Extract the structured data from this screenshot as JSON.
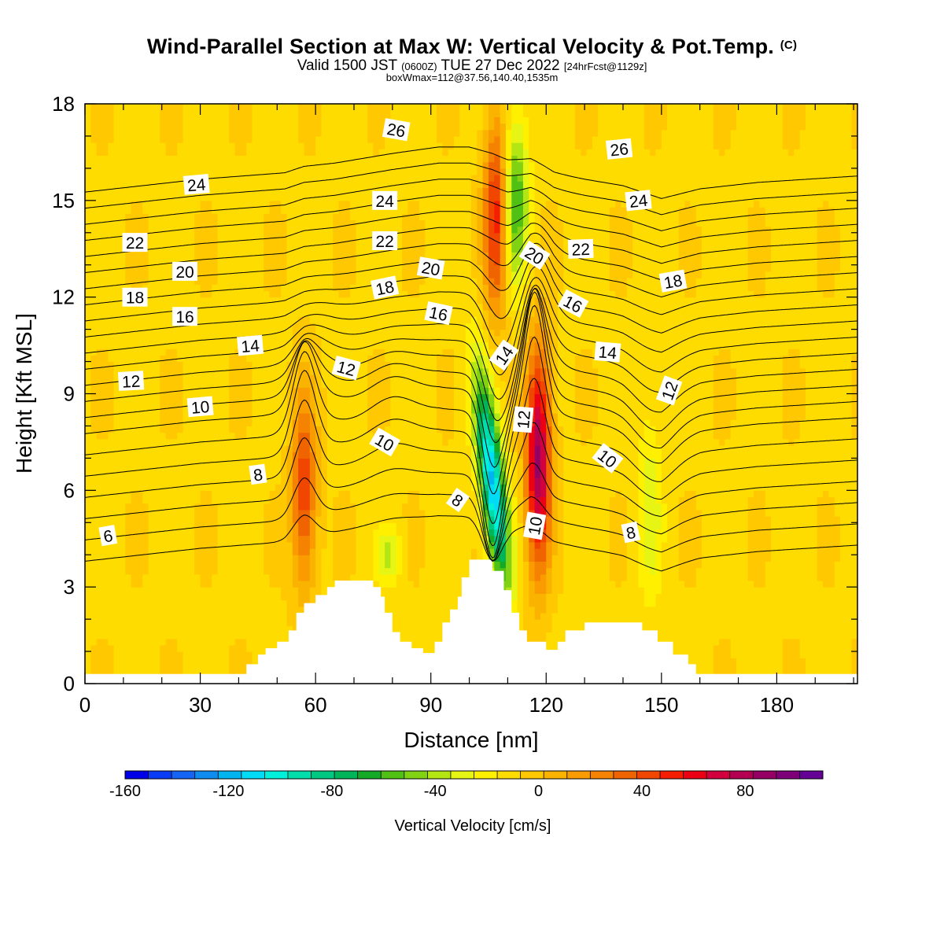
{
  "header": {
    "title": "Wind-Parallel Section at Max W: Vertical Velocity & Pot.Temp.",
    "copyright": "(C)",
    "subtitle_main_a": "Valid 1500 JST",
    "subtitle_small_a": "(0600Z)",
    "subtitle_main_b": "TUE 27 Dec 2022",
    "subtitle_small_b": "[24hrFcst@1129z]",
    "subsubtitle": "boxWmax=112@37.56,140.40,1535m"
  },
  "chart_data": {
    "type": "heatmap",
    "xlabel": "Distance [nm]",
    "ylabel": "Height [Kft MSL]",
    "xlim": [
      0,
      201
    ],
    "ylim": [
      0,
      18
    ],
    "x_ticks": [
      0,
      30,
      60,
      90,
      120,
      150,
      180
    ],
    "y_ticks": [
      0,
      3,
      6,
      9,
      12,
      15,
      18
    ],
    "x_tick_labels": [
      "0",
      "30",
      "60",
      "90",
      "120",
      "150",
      "180"
    ],
    "y_tick_labels": [
      "0",
      "3",
      "6",
      "9",
      "12",
      "15",
      "18"
    ],
    "colorbar": {
      "title": "Vertical Velocity [cm/s]",
      "min": -160,
      "max": 110,
      "step": 10,
      "tick_values": [
        -160,
        -120,
        -80,
        -40,
        0,
        40,
        80
      ],
      "tick_labels": [
        "-160",
        "-120",
        "-80",
        "-40",
        "0",
        "40",
        "80"
      ],
      "colors": [
        "#0000e8",
        "#0a3cf5",
        "#1464f5",
        "#0f8cf0",
        "#00b4f0",
        "#00dcf5",
        "#00f0dc",
        "#00dcaa",
        "#00c882",
        "#00b45a",
        "#14aa28",
        "#50c014",
        "#82d214",
        "#b4e614",
        "#e6f514",
        "#fff000",
        "#ffdc00",
        "#ffc800",
        "#fab400",
        "#fa9b00",
        "#f58200",
        "#f06400",
        "#f04600",
        "#f51e00",
        "#eb0014",
        "#d2003c",
        "#b40050",
        "#960064",
        "#7d0078",
        "#640096"
      ]
    },
    "w_field_features": [
      {
        "x_center": 57,
        "z_range": [
          2.5,
          9.5
        ],
        "w_max": 60,
        "sign": "updraft"
      },
      {
        "x_center": 107,
        "z_range": [
          11,
          18
        ],
        "w_max": 70,
        "sign": "updraft"
      },
      {
        "x_center": 112,
        "z_range": [
          12,
          18
        ],
        "w_min": -60,
        "sign": "downdraft"
      },
      {
        "x_center": 106,
        "z_range": [
          2.5,
          10
        ],
        "w_min": -120,
        "sign": "downdraft"
      },
      {
        "x_center": 118,
        "z_range": [
          3,
          11
        ],
        "w_max": 105,
        "sign": "updraft"
      },
      {
        "x_center": 147,
        "z_range": [
          2,
          9
        ],
        "w_min": -25,
        "sign": "downdraft"
      },
      {
        "x_center": 79,
        "z_range": [
          3,
          5
        ],
        "w_min": -30,
        "sign": "downdraft"
      }
    ],
    "terrain": [
      [
        0,
        0.3
      ],
      [
        42,
        0.3
      ],
      [
        42,
        0.6
      ],
      [
        45,
        0.6
      ],
      [
        45,
        0.9
      ],
      [
        47,
        0.9
      ],
      [
        47,
        1.1
      ],
      [
        50,
        1.1
      ],
      [
        50,
        1.3
      ],
      [
        53,
        1.3
      ],
      [
        53,
        1.65
      ],
      [
        55,
        1.65
      ],
      [
        55,
        2.2
      ],
      [
        57,
        2.2
      ],
      [
        57,
        2.5
      ],
      [
        60,
        2.5
      ],
      [
        60,
        2.75
      ],
      [
        63,
        2.75
      ],
      [
        63,
        3.0
      ],
      [
        65,
        3.0
      ],
      [
        65,
        3.2
      ],
      [
        75,
        3.2
      ],
      [
        75,
        3.0
      ],
      [
        77,
        3.0
      ],
      [
        77,
        2.7
      ],
      [
        78,
        2.7
      ],
      [
        78,
        2.2
      ],
      [
        80,
        2.2
      ],
      [
        80,
        1.6
      ],
      [
        82,
        1.6
      ],
      [
        82,
        1.3
      ],
      [
        85,
        1.3
      ],
      [
        85,
        1.1
      ],
      [
        88,
        1.1
      ],
      [
        88,
        0.95
      ],
      [
        91,
        0.95
      ],
      [
        91,
        1.3
      ],
      [
        93,
        1.3
      ],
      [
        93,
        1.9
      ],
      [
        95,
        1.9
      ],
      [
        95,
        2.3
      ],
      [
        97,
        2.3
      ],
      [
        97,
        2.7
      ],
      [
        98,
        2.7
      ],
      [
        98,
        3.3
      ],
      [
        100,
        3.3
      ],
      [
        100,
        3.85
      ],
      [
        106,
        3.85
      ],
      [
        106,
        3.5
      ],
      [
        109,
        3.5
      ],
      [
        109,
        2.9
      ],
      [
        111,
        2.9
      ],
      [
        111,
        2.2
      ],
      [
        113,
        2.2
      ],
      [
        113,
        1.65
      ],
      [
        115,
        1.65
      ],
      [
        115,
        1.3
      ],
      [
        120,
        1.3
      ],
      [
        120,
        1.05
      ],
      [
        123,
        1.05
      ],
      [
        123,
        1.3
      ],
      [
        125,
        1.3
      ],
      [
        125,
        1.65
      ],
      [
        130,
        1.65
      ],
      [
        130,
        1.9
      ],
      [
        145,
        1.9
      ],
      [
        145,
        1.65
      ],
      [
        149,
        1.65
      ],
      [
        149,
        1.3
      ],
      [
        153,
        1.3
      ],
      [
        153,
        0.9
      ],
      [
        157,
        0.9
      ],
      [
        157,
        0.6
      ],
      [
        159,
        0.6
      ],
      [
        159,
        0.3
      ],
      [
        201,
        0.3
      ]
    ],
    "theta_contours": {
      "units": "deg C (potential temperature)",
      "levels": [
        6,
        7,
        8,
        9,
        10,
        11,
        12,
        13,
        14,
        15,
        16,
        17,
        18,
        19,
        20,
        21,
        22,
        23,
        24,
        25,
        26,
        27
      ],
      "anchor_x": [
        0,
        30,
        52,
        57,
        65,
        80,
        92,
        100,
        106,
        110,
        116,
        122,
        130,
        140,
        150,
        160,
        175,
        201
      ],
      "base_heights": [
        3.8,
        4.2,
        4.4,
        4.6,
        4.7,
        5.0,
        5.2,
        5.2,
        5.0,
        4.8,
        4.8,
        4.4,
        4.2,
        4.0,
        3.6,
        3.9,
        4.1,
        4.3
      ],
      "dz_base": 0.66,
      "dz_upper": 0.5,
      "bulges": [
        {
          "x": 57,
          "dz": 2.3,
          "peak_level": 10,
          "width_levels": 3.5,
          "x_width": 4
        },
        {
          "x": 60,
          "dz": 0.6,
          "peak_level": 14,
          "width_levels": 4,
          "x_width": 7
        },
        {
          "x": 80,
          "dz": 0.6,
          "peak_level": 11,
          "width_levels": 4,
          "x_width": 8
        },
        {
          "x": 106,
          "dz": -3.2,
          "peak_level": 10,
          "width_levels": 4,
          "x_width": 3.5
        },
        {
          "x": 108,
          "dz": -1.8,
          "peak_level": 16,
          "width_levels": 4,
          "x_width": 5
        },
        {
          "x": 117,
          "dz": 2.8,
          "peak_level": 12,
          "width_levels": 3.5,
          "x_width": 3.5
        },
        {
          "x": 118,
          "dz": 1.2,
          "peak_level": 18,
          "width_levels": 5,
          "x_width": 5
        },
        {
          "x": 148,
          "dz": -0.8,
          "peak_level": 13,
          "width_levels": 5,
          "x_width": 7
        }
      ],
      "inline_labels": [
        {
          "text": "6",
          "x": 6,
          "z": 4.6,
          "angle": -10
        },
        {
          "text": "8",
          "x": 45,
          "z": 6.5,
          "angle": -8
        },
        {
          "text": "8",
          "x": 97,
          "z": 5.7,
          "angle": 35
        },
        {
          "text": "8",
          "x": 142,
          "z": 4.7,
          "angle": -12
        },
        {
          "text": "10",
          "x": 30,
          "z": 8.6,
          "angle": -5
        },
        {
          "text": "10",
          "x": 78,
          "z": 7.5,
          "angle": 30
        },
        {
          "text": "10",
          "x": 117,
          "z": 4.9,
          "angle": -80
        },
        {
          "text": "10",
          "x": 136,
          "z": 7.0,
          "angle": 38
        },
        {
          "text": "12",
          "x": 12,
          "z": 9.4,
          "angle": -3
        },
        {
          "text": "12",
          "x": 68,
          "z": 9.8,
          "angle": 15
        },
        {
          "text": "12",
          "x": 114,
          "z": 8.2,
          "angle": -85
        },
        {
          "text": "12",
          "x": 152,
          "z": 9.1,
          "angle": -70
        },
        {
          "text": "14",
          "x": 43,
          "z": 10.5,
          "angle": -5
        },
        {
          "text": "14",
          "x": 109,
          "z": 10.2,
          "angle": -55
        },
        {
          "text": "14",
          "x": 136,
          "z": 10.3,
          "angle": 5
        },
        {
          "text": "16",
          "x": 26,
          "z": 11.4,
          "angle": 0
        },
        {
          "text": "16",
          "x": 92,
          "z": 11.5,
          "angle": 12
        },
        {
          "text": "16",
          "x": 127,
          "z": 11.8,
          "angle": 28
        },
        {
          "text": "18",
          "x": 13,
          "z": 12.0,
          "angle": 0
        },
        {
          "text": "18",
          "x": 78,
          "z": 12.3,
          "angle": -12
        },
        {
          "text": "18",
          "x": 153,
          "z": 12.5,
          "angle": -10
        },
        {
          "text": "20",
          "x": 26,
          "z": 12.8,
          "angle": 0
        },
        {
          "text": "20",
          "x": 90,
          "z": 12.9,
          "angle": 10
        },
        {
          "text": "20",
          "x": 117,
          "z": 13.3,
          "angle": 32
        },
        {
          "text": "22",
          "x": 13,
          "z": 13.7,
          "angle": 0
        },
        {
          "text": "22",
          "x": 78,
          "z": 13.75,
          "angle": 0
        },
        {
          "text": "22",
          "x": 129,
          "z": 13.5,
          "angle": -2
        },
        {
          "text": "24",
          "x": 29,
          "z": 15.5,
          "angle": -5
        },
        {
          "text": "24",
          "x": 78,
          "z": 15.0,
          "angle": 0
        },
        {
          "text": "24",
          "x": 144,
          "z": 15.0,
          "angle": -6
        },
        {
          "text": "26",
          "x": 81,
          "z": 17.2,
          "angle": 10
        },
        {
          "text": "26",
          "x": 139,
          "z": 16.6,
          "angle": -6
        }
      ]
    }
  }
}
